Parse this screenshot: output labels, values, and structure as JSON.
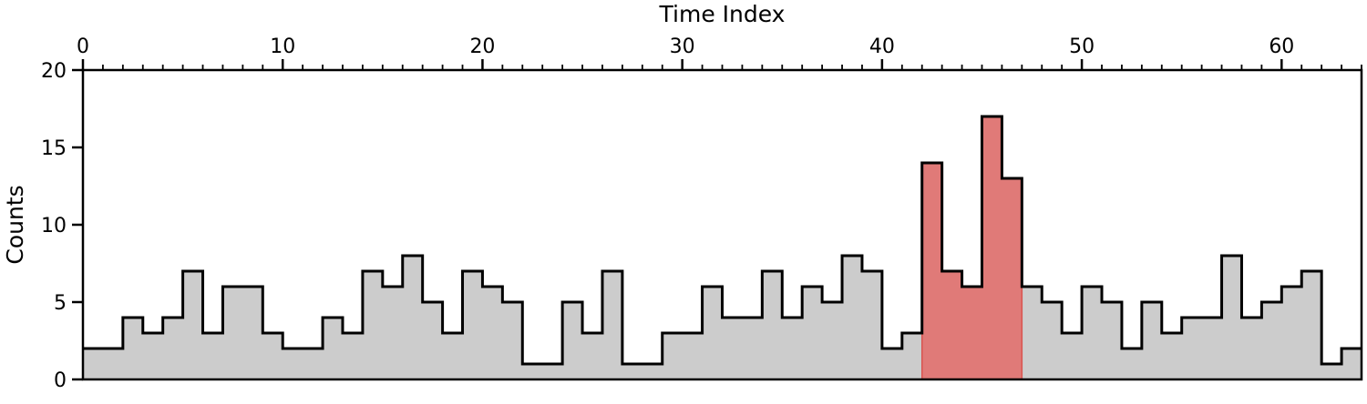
{
  "chart_data": {
    "type": "histogram-step",
    "title": "",
    "xlabel": "Time Index",
    "ylabel": "Counts",
    "xlim": [
      0,
      64
    ],
    "ylim": [
      0,
      20
    ],
    "x_major_ticks": [
      0,
      10,
      20,
      30,
      40,
      50,
      60
    ],
    "x_minor_step": 1,
    "y_major_ticks": [
      0,
      5,
      10,
      15,
      20
    ],
    "x_axis_position": "top",
    "grid": false,
    "bin_width": 1,
    "counts": [
      2,
      2,
      4,
      3,
      4,
      7,
      3,
      6,
      6,
      3,
      2,
      2,
      4,
      3,
      7,
      6,
      8,
      5,
      3,
      7,
      6,
      5,
      1,
      1,
      5,
      3,
      7,
      1,
      1,
      3,
      3,
      6,
      4,
      4,
      7,
      4,
      6,
      5,
      8,
      7,
      2,
      3,
      14,
      7,
      6,
      17,
      13,
      6,
      5,
      3,
      6,
      5,
      2,
      5,
      3,
      4,
      4,
      8,
      4,
      5,
      6,
      7,
      1,
      2
    ],
    "highlight": {
      "start": 42,
      "end": 47,
      "color": "#e07a78"
    },
    "base_fill_color": "#cccccc",
    "step_color": "#000000"
  }
}
